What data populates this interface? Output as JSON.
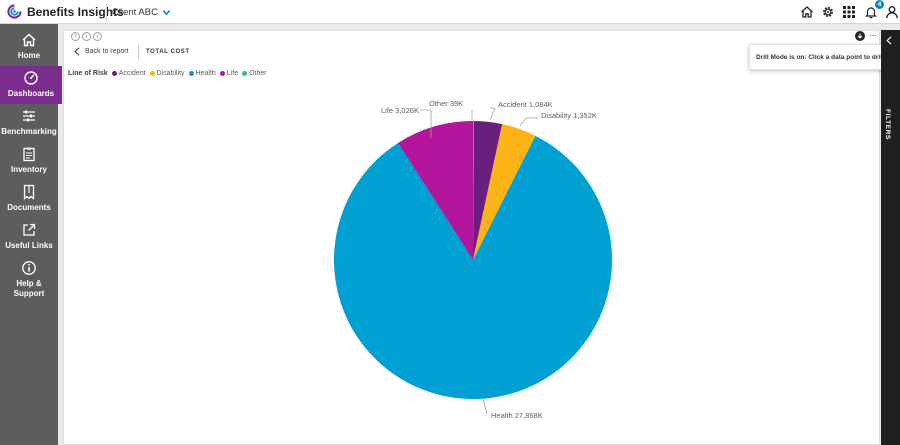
{
  "app": {
    "title": "Benefits Insights",
    "client": "Client ABC"
  },
  "topbar": {
    "notification_count": "4"
  },
  "sidebar": {
    "items": [
      {
        "label": "Home",
        "icon": "home-icon",
        "active": false
      },
      {
        "label": "Dashboards",
        "icon": "dashboard-icon",
        "active": true
      },
      {
        "label": "Benchmarking",
        "icon": "benchmark-icon",
        "active": false
      },
      {
        "label": "Inventory",
        "icon": "clipboard-icon",
        "active": false
      },
      {
        "label": "Documents",
        "icon": "document-icon",
        "active": false
      },
      {
        "label": "Useful Links",
        "icon": "external-link-icon",
        "active": false
      },
      {
        "label": "Help &",
        "label2": "Support",
        "icon": "info-icon",
        "active": false
      }
    ]
  },
  "visual": {
    "back_label": "Back to report",
    "title": "TOTAL COST",
    "tooltip": "Drill Mode is on: Click a data point to drill",
    "filters_label": "FILTERS"
  },
  "legend": {
    "title": "Line of Risk",
    "items": [
      {
        "name": "Accident",
        "color": "#6b1f7c"
      },
      {
        "name": "Disability",
        "color": "#fbb315"
      },
      {
        "name": "Health",
        "color": "#00a0d2"
      },
      {
        "name": "Life",
        "color": "#b3169c"
      },
      {
        "name": "Other",
        "color": "#2bbf8a"
      }
    ]
  },
  "chart_data": {
    "type": "pie",
    "title": "TOTAL COST",
    "legend_title": "Line of Risk",
    "slices": [
      {
        "name": "Other",
        "value": 39,
        "label": "Other 39K",
        "color": "#2bbf8a"
      },
      {
        "name": "Accident",
        "value": 1084,
        "label": "Accident 1,084K",
        "color": "#6b1f7c"
      },
      {
        "name": "Disability",
        "value": 1352,
        "label": "Disability 1,352K",
        "color": "#fbb315"
      },
      {
        "name": "Health",
        "value": 27868,
        "label": "Health 27,868K",
        "color": "#00a0d2"
      },
      {
        "name": "Life",
        "value": 3026,
        "label": "Life 3,026K",
        "color": "#b3169c"
      }
    ],
    "slice_order": [
      "Other",
      "Accident",
      "Disability",
      "Health",
      "Life"
    ],
    "start": "top, clockwise",
    "units": "K"
  }
}
